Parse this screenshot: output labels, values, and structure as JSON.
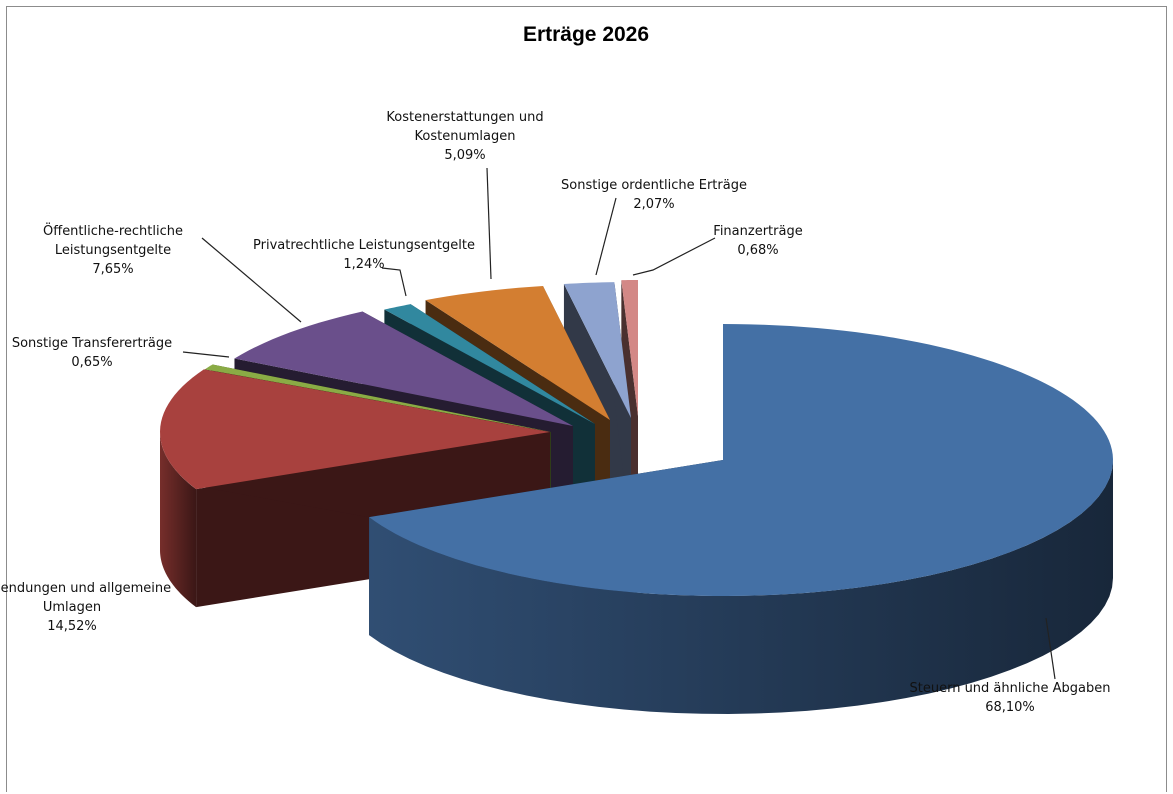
{
  "chart_data": {
    "type": "pie",
    "title": "Erträge 2026",
    "slices": [
      {
        "label": [
          "Steuern und ähnliche Abgaben"
        ],
        "pct": "68,10%",
        "value": 68.1,
        "color": "#4470a5"
      },
      {
        "label": [
          "Zuwendungen und allgemeine",
          "Umlagen"
        ],
        "pct": "14,52%",
        "value": 14.52,
        "color": "#a8413e"
      },
      {
        "label": [
          "Sonstige Transfererträge"
        ],
        "pct": "0,65%",
        "value": 0.65,
        "color": "#8aab45"
      },
      {
        "label": [
          "Öffentliche-rechtliche",
          "Leistungsentgelte"
        ],
        "pct": "7,65%",
        "value": 7.65,
        "color": "#6a4f8b"
      },
      {
        "label": [
          "Privatrechtliche Leistungsentgelte"
        ],
        "pct": "1,24%",
        "value": 1.24,
        "color": "#31889f"
      },
      {
        "label": [
          "Kostenerstattungen und",
          "Kostenumlagen"
        ],
        "pct": "5,09%",
        "value": 5.09,
        "color": "#d37e31"
      },
      {
        "label": [
          "Sonstige ordentliche Erträge"
        ],
        "pct": "2,07%",
        "value": 2.07,
        "color": "#8ea3cf"
      },
      {
        "label": [
          "Finanzerträge"
        ],
        "pct": "0,68%",
        "value": 0.68,
        "color": "#d38886"
      }
    ]
  }
}
